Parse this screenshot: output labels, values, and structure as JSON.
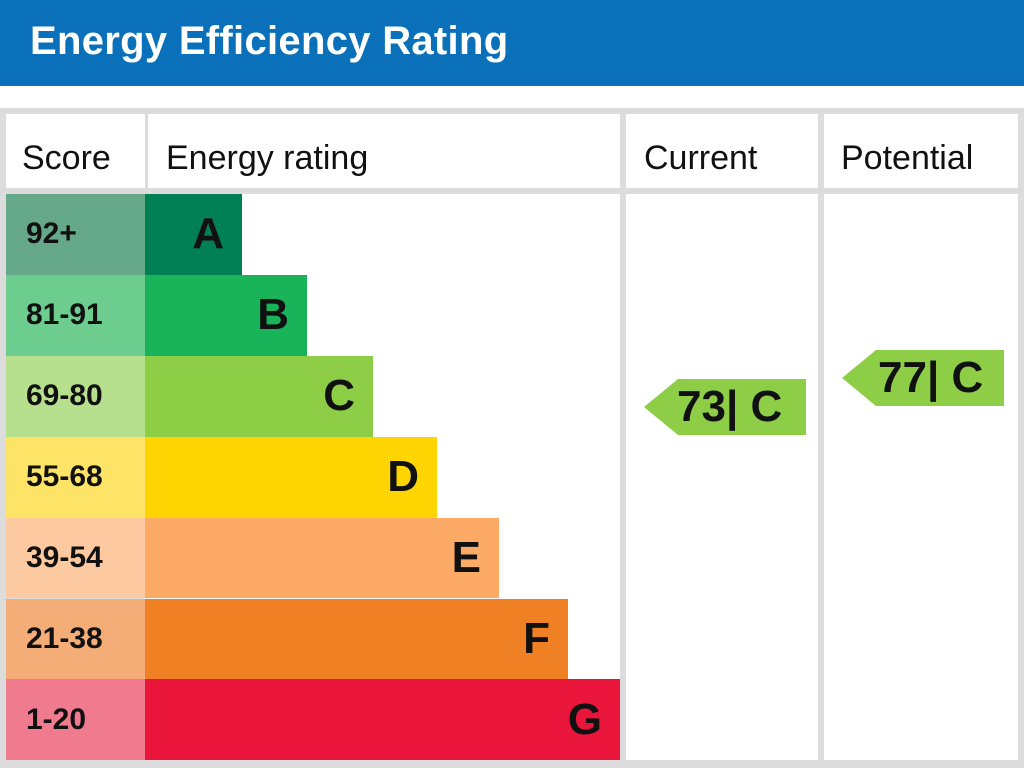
{
  "header": {
    "title": "Energy Efficiency Rating"
  },
  "table": {
    "col_score": "Score",
    "col_rating": "Energy rating",
    "col_current": "Current",
    "col_potential": "Potential"
  },
  "chart_data": {
    "type": "bar",
    "title": "Energy Efficiency Rating",
    "bands": [
      {
        "score": "92+",
        "letter": "A",
        "min": 92,
        "max": 100,
        "color": "#008054",
        "score_color": "#66a88a"
      },
      {
        "score": "81-91",
        "letter": "B",
        "min": 81,
        "max": 91,
        "color": "#19b459",
        "score_color": "#6dcd8f"
      },
      {
        "score": "69-80",
        "letter": "C",
        "min": 69,
        "max": 80,
        "color": "#8dce46",
        "score_color": "#b7e08e"
      },
      {
        "score": "55-68",
        "letter": "D",
        "min": 55,
        "max": 68,
        "color": "#ffd500",
        "score_color": "#fde366"
      },
      {
        "score": "39-54",
        "letter": "E",
        "min": 39,
        "max": 54,
        "color": "#fcaa65",
        "score_color": "#fcc9a0"
      },
      {
        "score": "21-38",
        "letter": "F",
        "min": 21,
        "max": 38,
        "color": "#ef8023",
        "score_color": "#f4ad77"
      },
      {
        "score": "1-20",
        "letter": "G",
        "min": 1,
        "max": 20,
        "color": "#e9153b",
        "score_color": "#f07a8e"
      }
    ],
    "current": {
      "value": 73,
      "band": "C",
      "label": "73| C",
      "color": "#8dce46"
    },
    "potential": {
      "value": 77,
      "band": "C",
      "label": "77| C",
      "color": "#8dce46"
    }
  }
}
